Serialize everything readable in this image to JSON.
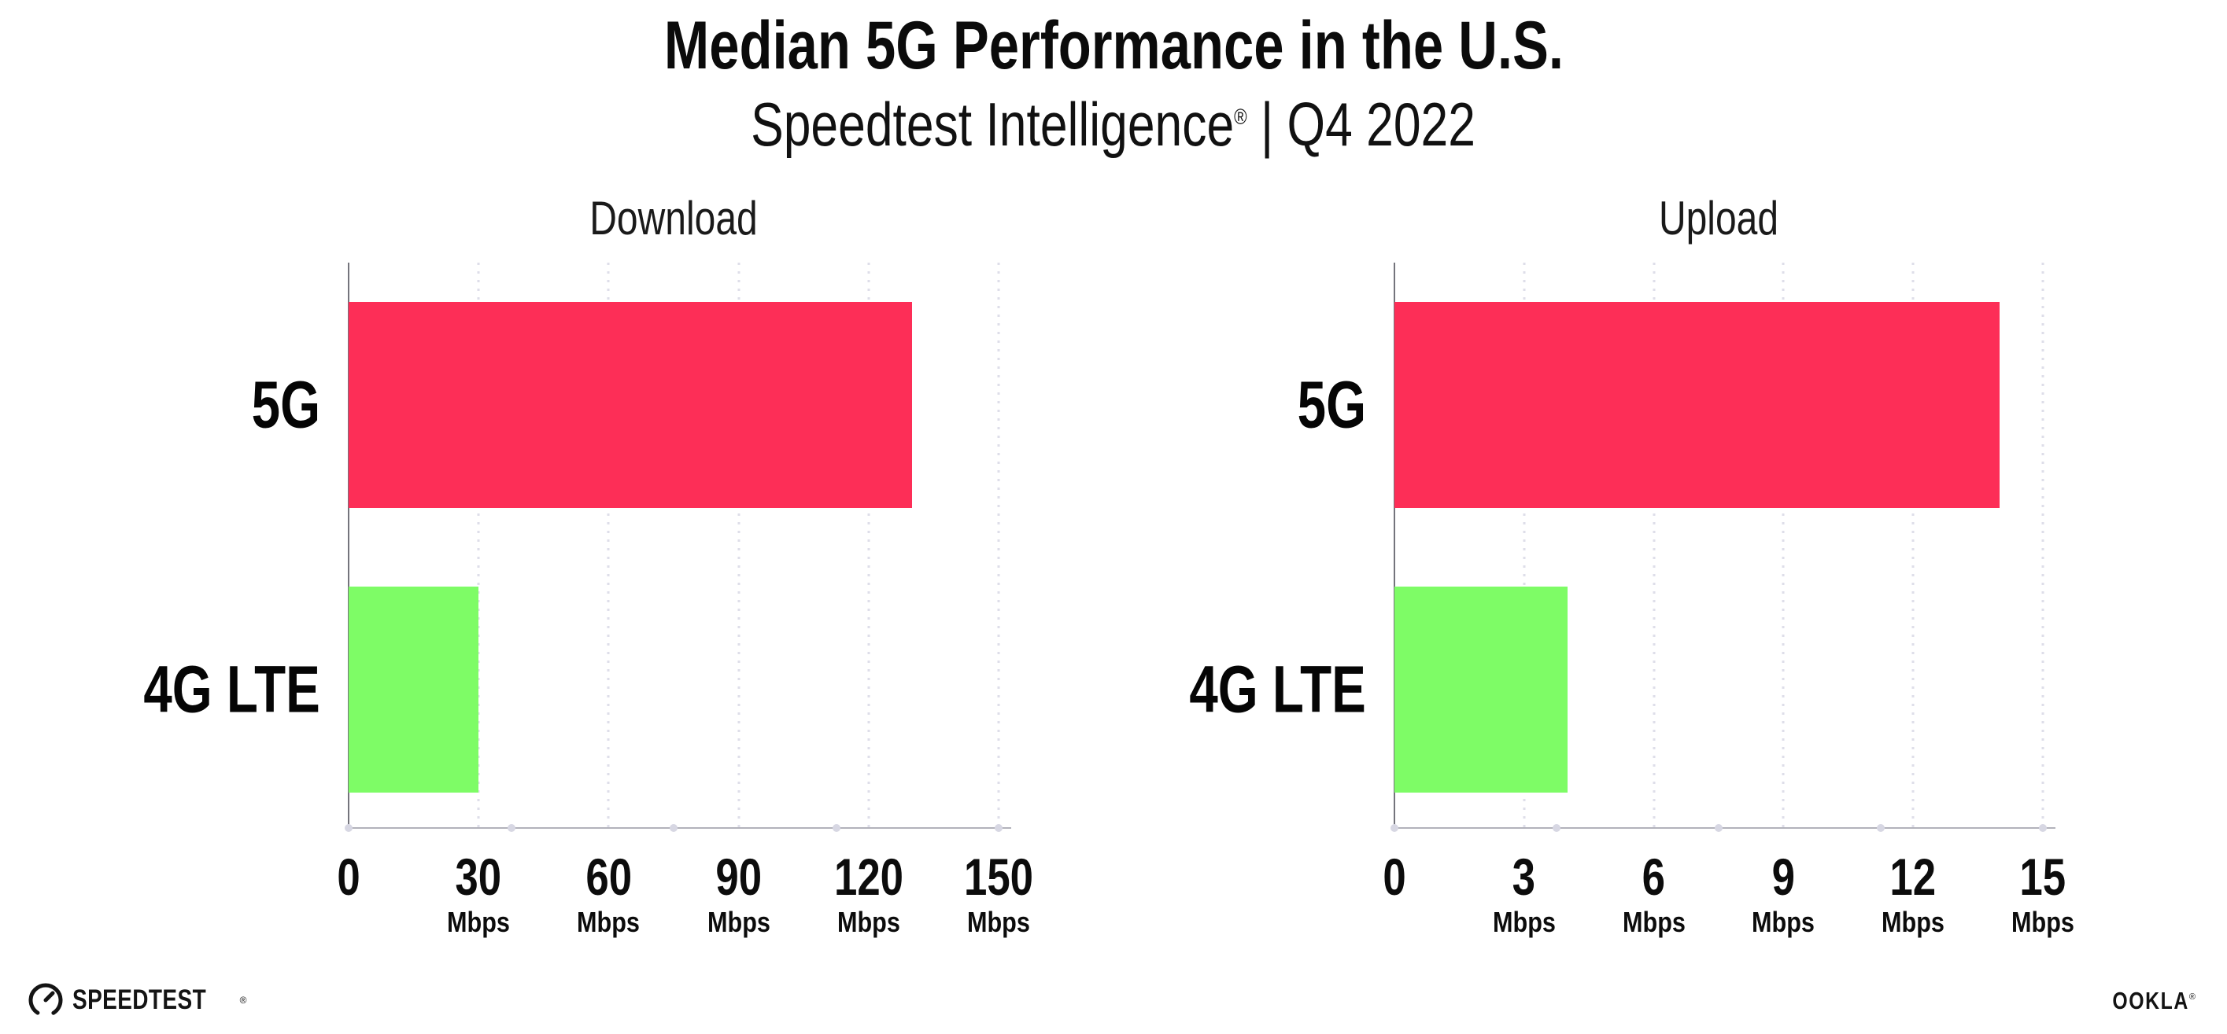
{
  "header": {
    "title": "Median 5G Performance in the U.S.",
    "subtitle_text": "Speedtest Intelligence",
    "subtitle_reg": "®",
    "subtitle_suffix": " | Q4 2022"
  },
  "chart_data": [
    {
      "type": "bar",
      "orientation": "horizontal",
      "title": "Download",
      "categories": [
        "5G",
        "4G LTE"
      ],
      "values": [
        130,
        30
      ],
      "unit": "Mbps",
      "xlim": [
        0,
        150
      ],
      "xticks": [
        0,
        30,
        60,
        90,
        120,
        150
      ],
      "tick_unit": "Mbps",
      "bar_colors": [
        "#fd2e57",
        "#7efc66"
      ],
      "grid": "vertical-dotted",
      "legend": "none"
    },
    {
      "type": "bar",
      "orientation": "horizontal",
      "title": "Upload",
      "categories": [
        "5G",
        "4G LTE"
      ],
      "values": [
        14,
        4
      ],
      "unit": "Mbps",
      "xlim": [
        0,
        15
      ],
      "xticks": [
        0,
        3,
        6,
        9,
        12,
        15
      ],
      "tick_unit": "Mbps",
      "bar_colors": [
        "#fd2e57",
        "#7efc66"
      ],
      "grid": "vertical-dotted",
      "legend": "none"
    }
  ],
  "footer": {
    "speedtest_wordmark": "SPEEDTEST",
    "speedtest_reg": "®",
    "gauge_icon": "speedtest-gauge-icon",
    "ookla_wordmark": "OOKLA",
    "ookla_reg": "®"
  },
  "colors": {
    "bar_5g": "#fd2e57",
    "bar_4g_lte": "#7efc66",
    "text": "#0c0c0c",
    "gridline": "#dedee9",
    "x_axis_line": "#b2b2bb",
    "y_axis_line": "#74747c"
  }
}
